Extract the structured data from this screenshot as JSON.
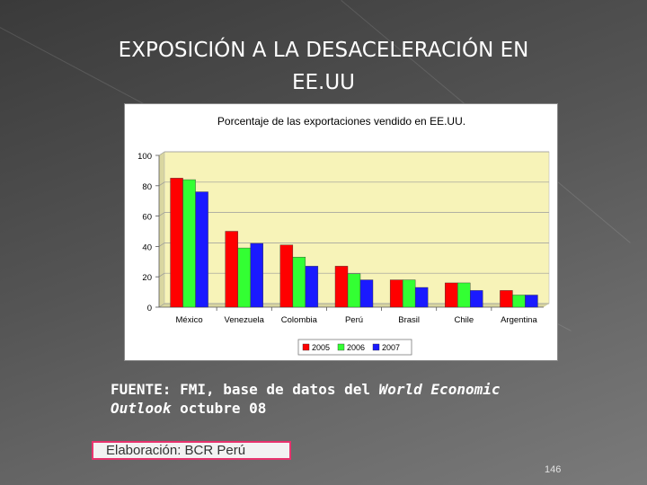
{
  "slide": {
    "title_line1": "EXPOSICIÓN A LA DESACELERACIÓN EN",
    "title_line2": "EE.UU",
    "source_prefix": "FUENTE: FMI, base de datos del ",
    "source_italic1": "World Economic",
    "source_italic2": "Outlook",
    "source_suffix": " octubre 08",
    "credit": "Elaboración: BCR Perú",
    "page_number": "146"
  },
  "colors": {
    "plot_background": "#f7f3b8",
    "series_2005": "#ff0000",
    "series_2006": "#33ff33",
    "series_2007": "#1a1aff"
  },
  "chart_data": {
    "type": "bar",
    "title": "Porcentaje de las exportaciones vendido en EE.UU.",
    "xlabel": "",
    "ylabel": "",
    "ylim": [
      0,
      100
    ],
    "yticks": [
      0,
      20,
      40,
      60,
      80,
      100
    ],
    "grid": true,
    "legend": "bottom",
    "categories": [
      "México",
      "Venezuela",
      "Colombia",
      "Perú",
      "Brasil",
      "Chile",
      "Argentina"
    ],
    "series": [
      {
        "name": "2005",
        "values": [
          85,
          50,
          41,
          27,
          18,
          16,
          11
        ]
      },
      {
        "name": "2006",
        "values": [
          84,
          39,
          33,
          22,
          18,
          16,
          8
        ]
      },
      {
        "name": "2007",
        "values": [
          76,
          42,
          27,
          18,
          13,
          11,
          8
        ]
      }
    ]
  }
}
